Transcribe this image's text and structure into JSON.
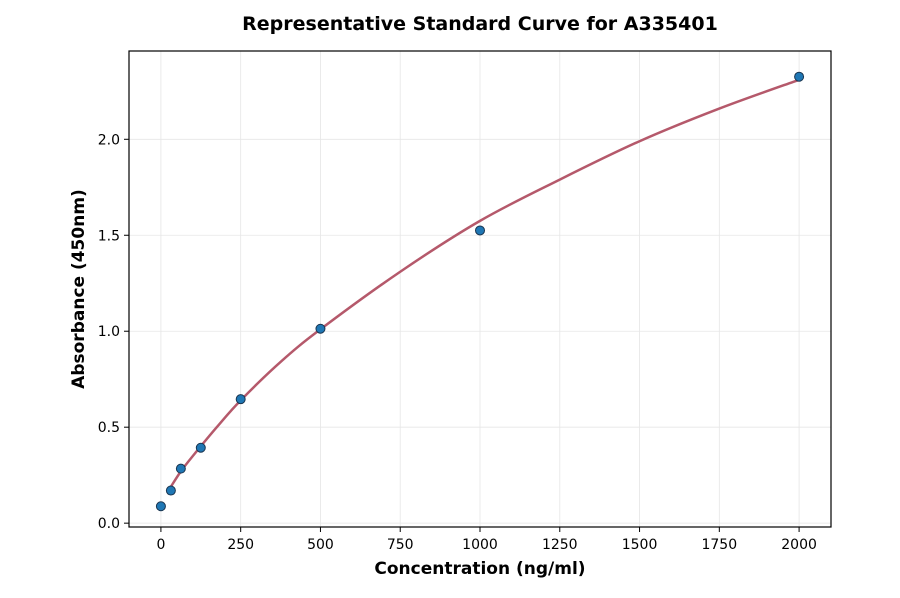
{
  "chart_data": {
    "type": "scatter",
    "title": "Representative Standard Curve for A335401",
    "xlabel": "Concentration (ng/ml)",
    "ylabel": "Absorbance (450nm)",
    "xlim": [
      -100,
      2100
    ],
    "ylim": [
      -0.02,
      2.46
    ],
    "grid": true,
    "xticks": [
      0,
      250,
      500,
      750,
      1000,
      1250,
      1500,
      1750,
      2000
    ],
    "yticks": [
      0.0,
      0.5,
      1.0,
      1.5,
      2.0
    ],
    "ytick_labels": [
      "0.0",
      "0.5",
      "1.0",
      "1.5",
      "2.0"
    ],
    "points": {
      "x": [
        0,
        31.25,
        62.5,
        125,
        250,
        500,
        1000,
        2000
      ],
      "y": [
        0.088,
        0.17,
        0.284,
        0.393,
        0.646,
        1.013,
        1.525,
        2.326
      ],
      "color": "#1f77b4"
    },
    "fit_curve": {
      "x": [
        31.25,
        62.5,
        100,
        175,
        250,
        375,
        500,
        750,
        1000,
        1250,
        1500,
        1750,
        2000
      ],
      "y": [
        0.19,
        0.27,
        0.35,
        0.5,
        0.64,
        0.84,
        1.01,
        1.31,
        1.575,
        1.79,
        1.99,
        2.16,
        2.31
      ],
      "color": "#b5596b"
    }
  }
}
